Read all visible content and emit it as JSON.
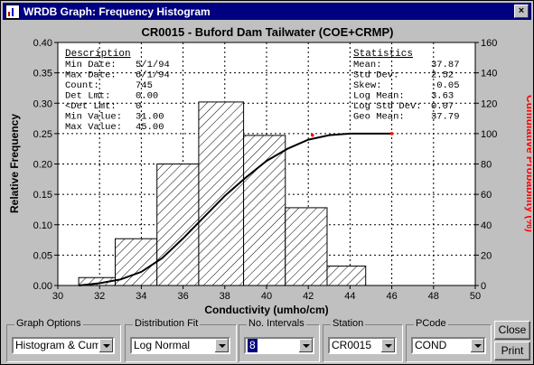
{
  "window": {
    "title": "WRDB Graph: Frequency Histogram",
    "close_label": "×"
  },
  "chart_data": {
    "type": "histogram",
    "title": "CR0015 - Buford Dam Tailwater (COE+CRMP)",
    "xlabel": "Conductivity (umho/cm)",
    "ylabel": "Relative Frequency",
    "y2label": "Cumulative Probability (%)",
    "xlim": [
      30,
      50
    ],
    "ylim": [
      0,
      0.4
    ],
    "y2lim": [
      0,
      160
    ],
    "xticks": [
      "30",
      "32",
      "34",
      "36",
      "38",
      "40",
      "42",
      "44",
      "46",
      "48",
      "50"
    ],
    "yticks": [
      "0.00",
      "0.05",
      "0.10",
      "0.15",
      "0.20",
      "0.25",
      "0.30",
      "0.35",
      "0.40"
    ],
    "y2ticks": [
      "0",
      "20",
      "40",
      "60",
      "80",
      "100",
      "120",
      "140",
      "160"
    ],
    "bins": [
      {
        "x0": 31.0,
        "x1": 32.75,
        "value": 0.013
      },
      {
        "x0": 32.75,
        "x1": 34.75,
        "value": 0.077
      },
      {
        "x0": 34.75,
        "x1": 36.75,
        "value": 0.2
      },
      {
        "x0": 36.75,
        "x1": 38.9,
        "value": 0.302
      },
      {
        "x0": 38.9,
        "x1": 40.9,
        "value": 0.247
      },
      {
        "x0": 40.9,
        "x1": 42.9,
        "value": 0.128
      },
      {
        "x0": 42.9,
        "x1": 44.75,
        "value": 0.032
      }
    ],
    "cumulative": {
      "x": [
        31,
        32,
        33,
        34,
        35,
        36,
        37,
        38,
        39,
        40,
        41,
        42,
        43,
        44,
        45,
        46
      ],
      "y": [
        0,
        1.5,
        4,
        9,
        18,
        31,
        45,
        59,
        71,
        82,
        90,
        96,
        99,
        100,
        100,
        100
      ]
    },
    "cumulative_points": [
      {
        "x": 42.2,
        "y": 99
      },
      {
        "x": 46.0,
        "y": 100
      }
    ],
    "description_heading": "Description",
    "description": [
      {
        "label": "Min Date:",
        "value": "5/1/94"
      },
      {
        "label": "Max Date:",
        "value": "6/1/94"
      },
      {
        "label": "Count:",
        "value": "745"
      },
      {
        "label": "Det Lmt:",
        "value": "0.00"
      },
      {
        "label": "<Det Lmt:",
        "value": "0"
      },
      {
        "label": "Min Value:",
        "value": "31.00"
      },
      {
        "label": "Max Value:",
        "value": "45.00"
      }
    ],
    "statistics_heading": "Statistics",
    "statistics": [
      {
        "label": "Mean:",
        "value": "37.87"
      },
      {
        "label": "Std Dev:",
        "value": "2.52"
      },
      {
        "label": "Skew:",
        "value": "-0.05"
      },
      {
        "label": "Log Mean:",
        "value": "3.63"
      },
      {
        "label": "Log Std Dev:",
        "value": "0.07"
      },
      {
        "label": "Geo Mean:",
        "value": "37.79"
      }
    ],
    "colors": {
      "bars": "#000000",
      "curve": "#000000",
      "points": "#ff0000",
      "y2label": "#ff0000"
    }
  },
  "controls": {
    "graph_options": {
      "label": "Graph Options",
      "value": "Histogram & Cumula"
    },
    "distribution_fit": {
      "label": "Distribution Fit",
      "value": "Log Normal"
    },
    "no_intervals": {
      "label": "No. Intervals",
      "value": "8"
    },
    "station": {
      "label": "Station",
      "value": "CR0015"
    },
    "pcode": {
      "label": "PCode",
      "value": "COND"
    },
    "close_button": "Close",
    "print_button": "Print"
  }
}
